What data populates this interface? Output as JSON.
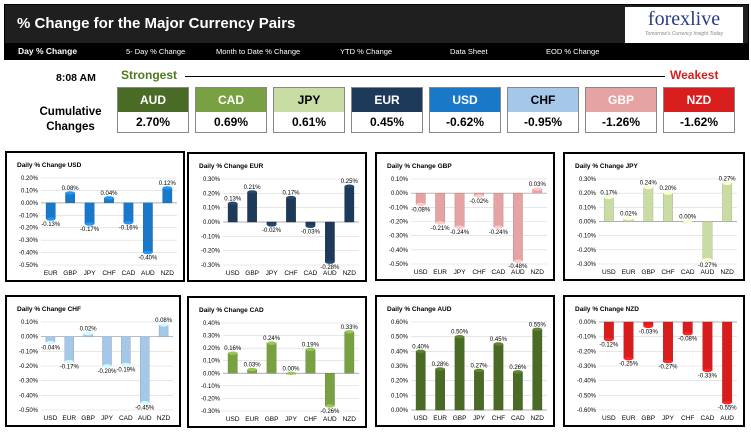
{
  "header": {
    "title": "% Change for the Major Currency Pairs",
    "logo": "forexlive",
    "logo_tagline": "Tomorrow's Currency Insight Today"
  },
  "nav": [
    "Day % Change",
    "5- Day % Change",
    "Month to Date % Change",
    "YTD % Change",
    "Data Sheet",
    "EOD % Change"
  ],
  "time": "8:08 AM",
  "strongest": "Strongest",
  "weakest": "Weakest",
  "cumulative_label": [
    "Cumulative",
    "Changes"
  ],
  "currencies": [
    {
      "name": "AUD",
      "pct": "2.70%",
      "color": "#4a6b25",
      "text": "#fff"
    },
    {
      "name": "CAD",
      "pct": "0.69%",
      "color": "#79a043",
      "text": "#fff"
    },
    {
      "name": "JPY",
      "pct": "0.61%",
      "color": "#c8dca4",
      "text": "#000"
    },
    {
      "name": "EUR",
      "pct": "0.45%",
      "color": "#1d3a5a",
      "text": "#fff"
    },
    {
      "name": "USD",
      "pct": "-0.62%",
      "color": "#1978c8",
      "text": "#fff"
    },
    {
      "name": "CHF",
      "pct": "-0.95%",
      "color": "#a6c8e8",
      "text": "#000"
    },
    {
      "name": "GBP",
      "pct": "-1.26%",
      "color": "#e5a3a3",
      "text": "#fff"
    },
    {
      "name": "NZD",
      "pct": "-1.62%",
      "color": "#d81d1d",
      "text": "#fff"
    }
  ],
  "chart_data": [
    {
      "type": "bar",
      "title": "Daily % Change USD",
      "categories": [
        "EUR",
        "GBP",
        "JPY",
        "CHF",
        "CAD",
        "AUD",
        "NZD"
      ],
      "values": [
        -0.13,
        0.08,
        -0.17,
        0.04,
        -0.16,
        -0.4,
        0.12
      ],
      "labels": [
        "-0.13%",
        "0.08%",
        "-0.17%",
        "0.04%",
        "-0.16%",
        "-0.40%",
        "0.12%"
      ],
      "ylim": [
        -0.5,
        0.2
      ],
      "yticks": [
        "0.20%",
        "0.10%",
        "0.00%",
        "-0.10%",
        "-0.20%",
        "-0.30%",
        "-0.40%",
        "-0.50%"
      ],
      "color": "#1978c8"
    },
    {
      "type": "bar",
      "title": "Daily % Change EUR",
      "categories": [
        "USD",
        "GBP",
        "JPY",
        "CHF",
        "CAD",
        "AUD",
        "NZD"
      ],
      "values": [
        0.13,
        0.21,
        -0.02,
        0.17,
        -0.03,
        -0.28,
        0.25
      ],
      "labels": [
        "0.13%",
        "0.21%",
        "-0.02%",
        "0.17%",
        "-0.03%",
        "-0.28%",
        "0.25%"
      ],
      "ylim": [
        -0.3,
        0.3
      ],
      "yticks": [
        "0.30%",
        "0.20%",
        "0.10%",
        "0.00%",
        "-0.10%",
        "-0.20%",
        "-0.30%"
      ],
      "color": "#1d3a5a"
    },
    {
      "type": "bar",
      "title": "Daily % Change GBP",
      "categories": [
        "USD",
        "EUR",
        "JPY",
        "CHF",
        "CAD",
        "AUD",
        "NZD"
      ],
      "values": [
        -0.08,
        -0.21,
        -0.24,
        -0.02,
        -0.24,
        -0.48,
        0.03
      ],
      "labels": [
        "-0.08%",
        "-0.21%",
        "-0.24%",
        "-0.02%",
        "-0.24%",
        "-0.48%",
        "0.03%"
      ],
      "ylim": [
        -0.5,
        0.1
      ],
      "yticks": [
        "0.10%",
        "0.00%",
        "-0.10%",
        "-0.20%",
        "-0.30%",
        "-0.40%",
        "-0.50%"
      ],
      "color": "#e5a3a3"
    },
    {
      "type": "bar",
      "title": "Daily % Change JPY",
      "categories": [
        "USD",
        "EUR",
        "GBP",
        "CHF",
        "CAD",
        "AUD",
        "NZD"
      ],
      "values": [
        0.17,
        0.02,
        0.24,
        0.2,
        0.0,
        -0.27,
        0.27
      ],
      "labels": [
        "0.17%",
        "0.02%",
        "0.24%",
        "0.20%",
        "0.00%",
        "-0.27%",
        "0.27%"
      ],
      "ylim": [
        -0.3,
        0.3
      ],
      "yticks": [
        "0.30%",
        "0.20%",
        "0.10%",
        "0.00%",
        "-0.10%",
        "-0.20%",
        "-0.30%"
      ],
      "color": "#c8dca4"
    },
    {
      "type": "bar",
      "title": "Daily % Change CHF",
      "categories": [
        "USD",
        "EUR",
        "GBP",
        "JPY",
        "CAD",
        "AUD",
        "NZD"
      ],
      "values": [
        -0.04,
        -0.17,
        0.02,
        -0.2,
        -0.19,
        -0.45,
        0.08
      ],
      "labels": [
        "-0.04%",
        "-0.17%",
        "0.02%",
        "-0.20%",
        "-0.19%",
        "-0.45%",
        "0.08%"
      ],
      "ylim": [
        -0.5,
        0.1
      ],
      "yticks": [
        "0.10%",
        "0.00%",
        "-0.10%",
        "-0.20%",
        "-0.30%",
        "-0.40%",
        "-0.50%"
      ],
      "color": "#a6c8e8"
    },
    {
      "type": "bar",
      "title": "Daily % Change CAD",
      "categories": [
        "USD",
        "EUR",
        "GBP",
        "JPY",
        "CHF",
        "AUD",
        "NZD"
      ],
      "values": [
        0.16,
        0.03,
        0.24,
        0.0,
        0.19,
        -0.26,
        0.33
      ],
      "labels": [
        "0.16%",
        "0.03%",
        "0.24%",
        "0.00%",
        "0.19%",
        "-0.26%",
        "0.33%"
      ],
      "ylim": [
        -0.3,
        0.4
      ],
      "yticks": [
        "0.40%",
        "0.30%",
        "0.20%",
        "0.10%",
        "0.00%",
        "-0.10%",
        "-0.20%",
        "-0.30%"
      ],
      "color": "#79a043"
    },
    {
      "type": "bar",
      "title": "Daily % Change AUD",
      "categories": [
        "USD",
        "EUR",
        "GBP",
        "JPY",
        "CHF",
        "CAD",
        "NZD"
      ],
      "values": [
        0.4,
        0.28,
        0.5,
        0.27,
        0.45,
        0.26,
        0.55
      ],
      "labels": [
        "0.40%",
        "0.28%",
        "0.50%",
        "0.27%",
        "0.45%",
        "0.26%",
        "0.55%"
      ],
      "ylim": [
        0,
        0.6
      ],
      "yticks": [
        "0.60%",
        "0.50%",
        "0.40%",
        "0.30%",
        "0.20%",
        "0.10%",
        "0.00%"
      ],
      "color": "#4a6b25"
    },
    {
      "type": "bar",
      "title": "Daily % Change NZD",
      "categories": [
        "USD",
        "EUR",
        "GBP",
        "JPY",
        "CHF",
        "CAD",
        "AUD"
      ],
      "values": [
        -0.12,
        -0.25,
        -0.03,
        -0.27,
        -0.08,
        -0.33,
        -0.55
      ],
      "labels": [
        "-0.12%",
        "-0.25%",
        "-0.03%",
        "-0.27%",
        "-0.08%",
        "-0.33%",
        "-0.55%"
      ],
      "ylim": [
        -0.6,
        0
      ],
      "yticks": [
        "0.00%",
        "-0.10%",
        "-0.20%",
        "-0.30%",
        "-0.40%",
        "-0.50%",
        "-0.60%"
      ],
      "color": "#d81d1d"
    }
  ]
}
